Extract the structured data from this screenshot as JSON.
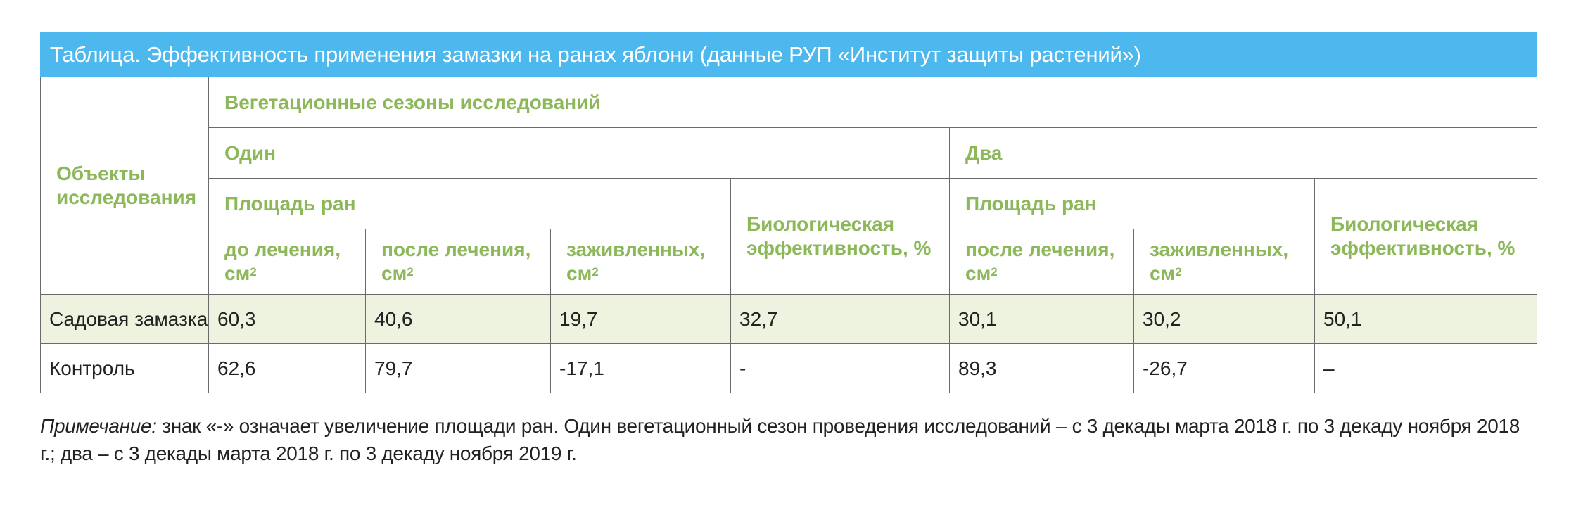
{
  "title": "Таблица. Эффективность применения замазки на ранах яблони (данные РУП «Институт защиты растений»)",
  "headers": {
    "objects": "Объекты исследования",
    "seasons": "Вегетационные сезоны исследований",
    "one": "Один",
    "two": "Два",
    "wound_area_1": "Площадь ран",
    "wound_area_2": "Площадь ран",
    "before": "до лечения,",
    "after_1": "после лечения,",
    "healed_1": "заживленных,",
    "bio_eff_1": "Биологическая эффективность, %",
    "after_2": "после лечения,",
    "healed_2": "заживленных,",
    "bio_eff_2": "Биологическая эффективность, %",
    "unit_base": "см",
    "unit_exp": "2"
  },
  "rows": [
    {
      "name": "Садовая замазка",
      "cells": [
        "60,3",
        "40,6",
        "19,7",
        "32,7",
        "30,1",
        "30,2",
        "50,1"
      ]
    },
    {
      "name": "Контроль",
      "cells": [
        "62,6",
        "79,7",
        "-17,1",
        "-",
        "89,3",
        "-26,7",
        "–"
      ]
    }
  ],
  "note": {
    "label": "Примечание:",
    "text": " знак «-» означает увеличение площади ран. Один вегетационный сезон проведения исследований – с 3 декады марта 2018 г. по 3 декаду ноября 2018 г.; два – с 3 декады марта 2018 г. по 3 декаду ноября 2019 г."
  },
  "colors": {
    "title_bar": "#4db8ee",
    "header_text": "#8cb85a",
    "highlight_row": "#edf3de",
    "border": "#6b6b6b"
  }
}
